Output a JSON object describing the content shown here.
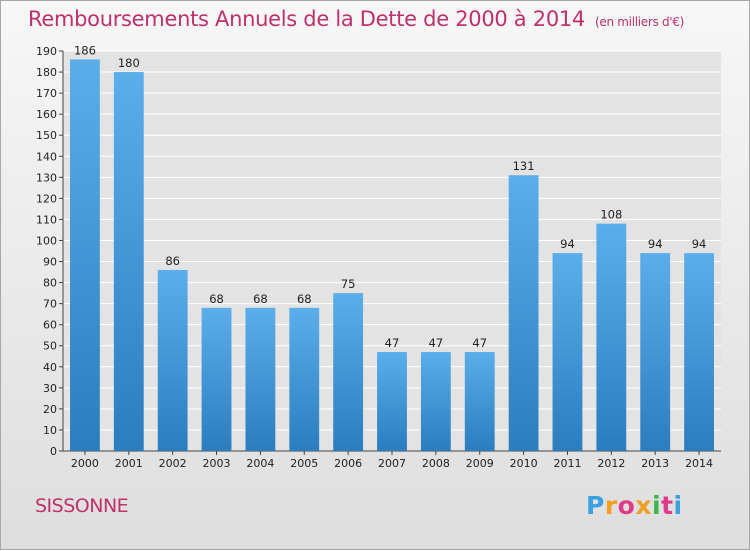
{
  "chart_data": {
    "type": "bar",
    "title": "Remboursements Annuels de la Dette de 2000 à 2014",
    "unit_note": "(en milliers d'€)",
    "categories": [
      "2000",
      "2001",
      "2002",
      "2003",
      "2004",
      "2005",
      "2006",
      "2007",
      "2008",
      "2009",
      "2010",
      "2011",
      "2012",
      "2013",
      "2014"
    ],
    "values": [
      186,
      180,
      86,
      68,
      68,
      68,
      75,
      47,
      47,
      47,
      131,
      94,
      108,
      94,
      94
    ],
    "ylim": [
      0,
      190
    ],
    "yticks": [
      0,
      10,
      20,
      30,
      40,
      50,
      60,
      70,
      80,
      90,
      100,
      110,
      120,
      130,
      140,
      150,
      160,
      170,
      180,
      190
    ],
    "grid": true,
    "bar_color": "#4f9fe0",
    "title_color": "#c0306a"
  },
  "footer": {
    "commune": "SISSONNE",
    "logo": {
      "letters": [
        "P",
        "r",
        "o",
        "x",
        "i",
        "t",
        "i"
      ],
      "colors": [
        "#3aa0e0",
        "#f0a020",
        "#e03a8a",
        "#f0a020",
        "#3ab84a",
        "#e03a8a",
        "#3aa0e0"
      ]
    }
  }
}
